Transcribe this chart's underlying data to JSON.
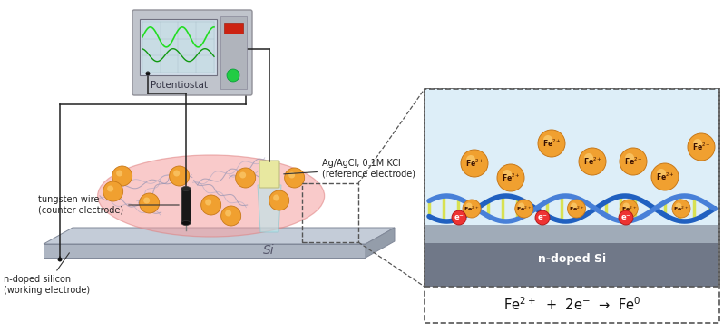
{
  "bg_color": "#ffffff",
  "wire_color": "#222222",
  "pot_body_color": "#c0c4cc",
  "pot_body_edge": "#909098",
  "pot_screen_bg": "#c8dce4",
  "pot_screen_grid": "#a0b8c4",
  "pot_wave1": "#22dd22",
  "pot_wave2": "#119911",
  "pot_rpanel": "#b0b4bc",
  "pot_led_green": "#22cc44",
  "pot_led_red": "#cc2211",
  "pot_label": "Potentiostat",
  "wafer_top": "#c4ccd8",
  "wafer_front": "#adb5c2",
  "wafer_right": "#949daa",
  "wafer_label": "Si",
  "solution_color": "#f5a0a0",
  "solution_alpha": 0.55,
  "solution_edge": "#df8080",
  "dna_color": "#9898b8",
  "fe_fill": "#f0a030",
  "fe_edge": "#c87818",
  "fe_shine": "#ffd880",
  "tung_fill": "#181818",
  "tung_edge": "#383838",
  "ref_beam": "#b8e8ec",
  "ref_body": "#e8e8a0",
  "ref_edge": "#c0c080",
  "inset_bg": "#ddeef8",
  "inset_si_top": "#a0abb8",
  "inset_si_bot": "#707888",
  "inset_si_label": "n-doped Si",
  "dna1_color": "#2060c0",
  "dna2_color": "#4880d8",
  "dna_rung": "#d8e040",
  "e_circle": "#ee3333",
  "e_label_color": "#ffffff",
  "equation": "Fe$^{2+}$  +  2e$^{-}$  →  Fe$^{0}$",
  "label_fs": 7.0,
  "tung_label": "tungsten wire\n(counter electrode)",
  "ref_label": "Ag/AgCl, 0.1M KCl\n(reference electrode)",
  "ndoped_label": "n-doped silicon\n(working electrode)"
}
